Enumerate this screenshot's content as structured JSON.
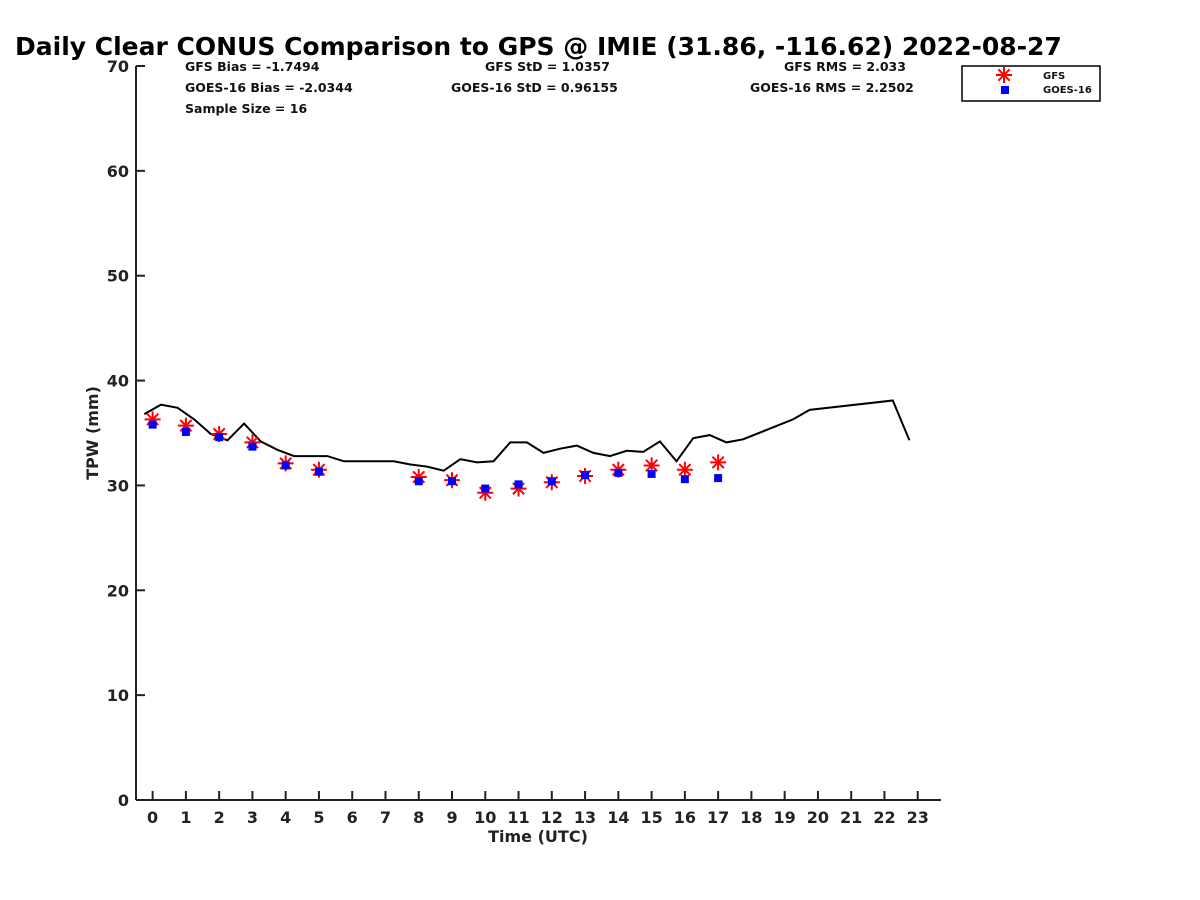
{
  "chart_data": {
    "type": "line",
    "title": "Daily Clear CONUS Comparison to GPS @ IMIE (31.86, -116.62) 2022-08-27",
    "xlabel": "Time (UTC)",
    "ylabel": "TPW (mm)",
    "xlim": [
      -0.5,
      23.7
    ],
    "ylim": [
      0,
      70
    ],
    "x_ticks": [
      0,
      1,
      2,
      3,
      4,
      5,
      6,
      7,
      8,
      9,
      10,
      11,
      12,
      13,
      14,
      15,
      16,
      17,
      18,
      19,
      20,
      21,
      22,
      23
    ],
    "y_ticks": [
      0,
      10,
      20,
      30,
      40,
      50,
      60,
      70
    ],
    "grid": false,
    "legend_position": "top-right",
    "stats": {
      "gfs_bias": "GFS Bias = -1.7494",
      "goes_bias": "GOES-16 Bias = -2.0344",
      "sample_size": "Sample Size = 16",
      "gfs_std": "GFS StD = 1.0357",
      "goes_std": "GOES-16 StD = 0.96155",
      "gfs_rms": "GFS RMS = 2.033",
      "goes_rms": "GOES-16 RMS = 2.2502"
    },
    "series": [
      {
        "style": "line",
        "color": "#000000",
        "x": [
          -0.25,
          0.25,
          0.75,
          1.25,
          1.75,
          2.25,
          2.75,
          3.25,
          3.75,
          4.25,
          4.75,
          5.25,
          5.75,
          6.25,
          6.75,
          7.25,
          7.75,
          8.25,
          8.75,
          9.25,
          9.75,
          10.25,
          10.75,
          11.25,
          11.75,
          12.25,
          12.75,
          13.25,
          13.75,
          14.25,
          14.75,
          15.25,
          15.75,
          16.25,
          16.75,
          17.25,
          17.75,
          19.25,
          19.75,
          22.25,
          22.75
        ],
        "y": [
          36.8,
          37.7,
          37.4,
          36.3,
          34.9,
          34.3,
          35.9,
          34.2,
          33.4,
          32.8,
          32.8,
          32.8,
          32.3,
          32.3,
          32.3,
          32.3,
          32.0,
          31.8,
          31.4,
          32.5,
          32.2,
          32.3,
          34.1,
          34.1,
          33.1,
          33.5,
          33.8,
          33.1,
          32.8,
          33.3,
          33.2,
          34.2,
          32.3,
          34.5,
          34.8,
          34.1,
          34.4,
          36.3,
          37.2,
          38.1,
          34.3
        ]
      },
      {
        "name": "GFS",
        "style": "marker-star",
        "color": "#ff0000",
        "x": [
          0,
          1,
          2,
          3,
          4,
          5,
          8,
          9,
          10,
          11,
          12,
          13,
          14,
          15,
          16,
          17
        ],
        "y": [
          36.3,
          35.7,
          34.9,
          34.1,
          32.1,
          31.5,
          30.8,
          30.5,
          29.3,
          29.7,
          30.3,
          30.9,
          31.5,
          31.9,
          31.5,
          32.2
        ]
      },
      {
        "name": "GOES-16",
        "style": "marker-square",
        "color": "#0000ff",
        "x": [
          0,
          1,
          2,
          3,
          4,
          5,
          8,
          9,
          10,
          11,
          12,
          13,
          14,
          15,
          16,
          17
        ],
        "y": [
          35.8,
          35.1,
          34.6,
          33.7,
          31.9,
          31.3,
          30.4,
          30.4,
          29.7,
          30.1,
          30.4,
          31.0,
          31.2,
          31.1,
          30.6,
          30.7
        ]
      }
    ]
  }
}
